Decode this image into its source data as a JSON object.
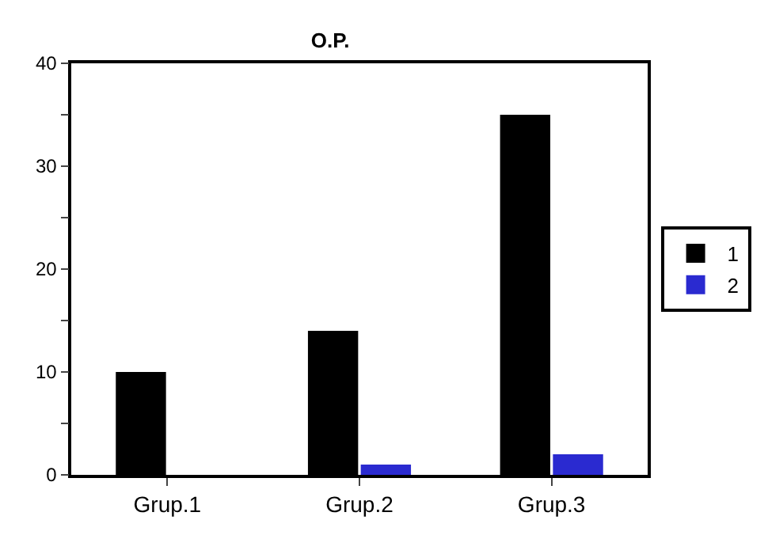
{
  "chart_data": {
    "type": "bar",
    "title": "O.P.",
    "categories": [
      "Grup.1",
      "Grup.2",
      "Grup.3"
    ],
    "series": [
      {
        "name": "1",
        "color": "#000000",
        "values": [
          10,
          14,
          35
        ]
      },
      {
        "name": "2",
        "color": "#2a2ad0",
        "values": [
          null,
          1,
          2
        ]
      }
    ],
    "ylim": [
      0,
      40
    ],
    "yticks": [
      0,
      {
        "value": 5,
        "label": null
      },
      10,
      {
        "value": 15,
        "label": null
      },
      20,
      {
        "value": 25,
        "label": null
      },
      30,
      {
        "value": 35,
        "label": null
      },
      40
    ],
    "grid": false,
    "legend": "right"
  }
}
